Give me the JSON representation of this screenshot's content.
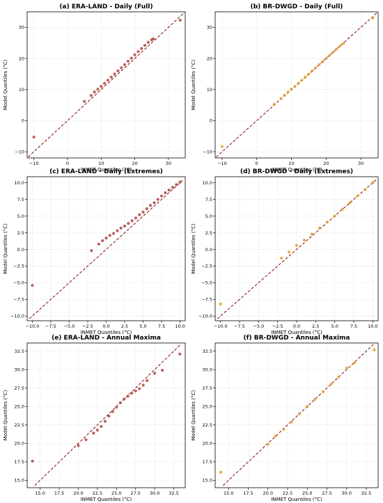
{
  "figure": {
    "background": "#ffffff"
  },
  "colors": {
    "era_land": "#b5504a",
    "br_dwgd": "#e3a23a",
    "reference_line": "#8b1a1a",
    "grid": "#d9d9d9"
  },
  "chart_data": [
    {
      "type": "scatter",
      "title": "(a) ERA-LAND - Daily (Full)",
      "xlabel": "INMET Quantiles (°C)",
      "ylabel": "Model Quantiles (°C)",
      "xlim": [
        -12,
        35
      ],
      "ylim": [
        -12,
        35
      ],
      "xticks": [
        -10,
        0,
        10,
        20,
        30
      ],
      "yticks": [
        -10,
        0,
        10,
        20,
        30
      ],
      "xtick_labels": [
        "−10",
        "0",
        "10",
        "20",
        "30"
      ],
      "ytick_labels": [
        "−10",
        "0",
        "10",
        "20",
        "30"
      ],
      "grid": true,
      "reference_line": "1:1 dashed",
      "color": "#b5504a",
      "points": [
        [
          -10,
          -5.3
        ],
        [
          5,
          6.2
        ],
        [
          7,
          8.1
        ],
        [
          8,
          9.2
        ],
        [
          9,
          10.1
        ],
        [
          10,
          11
        ],
        [
          11,
          12
        ],
        [
          12,
          13
        ],
        [
          13,
          14
        ],
        [
          14,
          15
        ],
        [
          15,
          16
        ],
        [
          16,
          17
        ],
        [
          17,
          18
        ],
        [
          18,
          19.1
        ],
        [
          19,
          20.1
        ],
        [
          20,
          21.2
        ],
        [
          21,
          22.2
        ],
        [
          22,
          23.2
        ],
        [
          23,
          24.2
        ],
        [
          24,
          25.2
        ],
        [
          25,
          26
        ],
        [
          25.5,
          26.3
        ],
        [
          33.5,
          32.3
        ]
      ]
    },
    {
      "type": "scatter",
      "title": "(b) BR-DWGD - Daily (Full)",
      "xlabel": "INMET Quantiles (°C)",
      "ylabel": "Model Quantiles (°C)",
      "xlim": [
        -12,
        35
      ],
      "ylim": [
        -12,
        35
      ],
      "xticks": [
        -10,
        0,
        10,
        20,
        30
      ],
      "yticks": [
        -10,
        0,
        10,
        20,
        30
      ],
      "xtick_labels": [
        "−10",
        "0",
        "10",
        "20",
        "30"
      ],
      "ytick_labels": [
        "−10",
        "0",
        "10",
        "20",
        "30"
      ],
      "grid": true,
      "reference_line": "1:1 dashed",
      "color": "#e3a23a",
      "points": [
        [
          -10,
          -8.3
        ],
        [
          5,
          5.2
        ],
        [
          7,
          7.1
        ],
        [
          8,
          8.2
        ],
        [
          9,
          9.2
        ],
        [
          10,
          10.1
        ],
        [
          11,
          11
        ],
        [
          12,
          12
        ],
        [
          13,
          13
        ],
        [
          14,
          14
        ],
        [
          15,
          15
        ],
        [
          16,
          16
        ],
        [
          17,
          17
        ],
        [
          18,
          18
        ],
        [
          19,
          19
        ],
        [
          20,
          20
        ],
        [
          21,
          21
        ],
        [
          22,
          22
        ],
        [
          23,
          23
        ],
        [
          24,
          24
        ],
        [
          25,
          24.8
        ],
        [
          33.5,
          33
        ]
      ]
    },
    {
      "type": "scatter",
      "title": "(c) ERA-LAND - Daily (Extremes)",
      "xlabel": "INMET Quantiles (°C)",
      "ylabel": "Model Quantiles (°C)",
      "xlim": [
        -10.7,
        10.7
      ],
      "ylim": [
        -10.7,
        10.9
      ],
      "xticks": [
        -10,
        -7.5,
        -5,
        -2.5,
        0,
        2.5,
        5,
        7.5,
        10
      ],
      "yticks": [
        -10,
        -7.5,
        -5,
        -2.5,
        0,
        2.5,
        5,
        7.5,
        10
      ],
      "xtick_labels": [
        "−10.0",
        "−7.5",
        "−5.0",
        "−2.5",
        "0.0",
        "2.5",
        "5.0",
        "7.5",
        "10.0"
      ],
      "ytick_labels": [
        "−10.0",
        "−7.5",
        "−5.0",
        "−2.5",
        "0.0",
        "2.5",
        "5.0",
        "7.5",
        "10.0"
      ],
      "grid": true,
      "reference_line": "1:1 dashed",
      "color": "#b5504a",
      "points": [
        [
          -10,
          -5.4
        ],
        [
          -2,
          -0.2
        ],
        [
          -1,
          0.8
        ],
        [
          -0.5,
          1.3
        ],
        [
          0,
          1.7
        ],
        [
          0.5,
          2.1
        ],
        [
          1,
          2.4
        ],
        [
          1.5,
          2.8
        ],
        [
          2,
          3.2
        ],
        [
          2.5,
          3.5
        ],
        [
          3,
          3.9
        ],
        [
          3.5,
          4.3
        ],
        [
          4,
          4.7
        ],
        [
          4.5,
          5.2
        ],
        [
          5,
          5.6
        ],
        [
          5.5,
          6.1
        ],
        [
          6,
          6.6
        ],
        [
          6.5,
          7
        ],
        [
          7,
          7.5
        ],
        [
          7.5,
          8
        ],
        [
          8,
          8.5
        ],
        [
          8.5,
          8.9
        ],
        [
          9,
          9.3
        ],
        [
          9.5,
          9.7
        ],
        [
          10,
          10.1
        ]
      ]
    },
    {
      "type": "scatter",
      "title": "(d) BR-DWGD - Daily (Extremes)",
      "xlabel": "INMET Quantiles (°C)",
      "ylabel": "Model Quantiles (°C)",
      "xlim": [
        -10.7,
        10.7
      ],
      "ylim": [
        -10.7,
        10.9
      ],
      "xticks": [
        -10,
        -7.5,
        -5,
        -2.5,
        0,
        2.5,
        5,
        7.5,
        10
      ],
      "yticks": [
        -10,
        -7.5,
        -5,
        -2.5,
        0,
        2.5,
        5,
        7.5,
        10
      ],
      "xtick_labels": [
        "−10.0",
        "−7.5",
        "−5.0",
        "−2.5",
        "0.0",
        "2.5",
        "5.0",
        "7.5",
        "10.0"
      ],
      "ytick_labels": [
        "−10.0",
        "−7.5",
        "−5.0",
        "−2.5",
        "0.0",
        "2.5",
        "5.0",
        "7.5",
        "10.0"
      ],
      "grid": true,
      "reference_line": "1:1 dashed",
      "color": "#e3a23a",
      "points": [
        [
          -10,
          -8.2
        ],
        [
          -2,
          -1.3
        ],
        [
          -1,
          -0.4
        ],
        [
          0,
          0.6
        ],
        [
          1,
          1.4
        ],
        [
          2,
          2.3
        ],
        [
          3,
          3.2
        ],
        [
          4,
          4.1
        ],
        [
          5,
          5
        ],
        [
          6,
          6
        ],
        [
          7,
          7
        ],
        [
          8,
          8
        ],
        [
          9,
          9
        ],
        [
          10,
          10
        ]
      ]
    },
    {
      "type": "scatter",
      "title": "(e) ERA-LAND - Annual Maxima",
      "xlabel": "INMET Quantiles (°C)",
      "ylabel": "Model Quantiles (°C)",
      "xlim": [
        13.3,
        34.0
      ],
      "ylim": [
        14.0,
        33.6
      ],
      "xticks": [
        15,
        17.5,
        20,
        22.5,
        25,
        27.5,
        30,
        32.5
      ],
      "yticks": [
        15,
        17.5,
        20,
        22.5,
        25,
        27.5,
        30,
        32.5
      ],
      "xtick_labels": [
        "15.0",
        "17.5",
        "20.0",
        "22.5",
        "25.0",
        "27.5",
        "30.0",
        "32.5"
      ],
      "ytick_labels": [
        "15.0",
        "17.5",
        "20.0",
        "22.5",
        "25.0",
        "27.5",
        "30.0",
        "32.5"
      ],
      "grid": true,
      "reference_line": "1:1 dashed",
      "color": "#b5504a",
      "points": [
        [
          14,
          17.6
        ],
        [
          20,
          19.7
        ],
        [
          21,
          20.5
        ],
        [
          22,
          21.4
        ],
        [
          22.5,
          21.8
        ],
        [
          23,
          22.3
        ],
        [
          23.5,
          23
        ],
        [
          24,
          23.7
        ],
        [
          24.5,
          24.3
        ],
        [
          25,
          24.9
        ],
        [
          25.5,
          25.5
        ],
        [
          26,
          26
        ],
        [
          26.5,
          26.4
        ],
        [
          27,
          26.8
        ],
        [
          27.5,
          27.1
        ],
        [
          28,
          27.4
        ],
        [
          28.5,
          27.9
        ],
        [
          29,
          28.5
        ],
        [
          30,
          29.5
        ],
        [
          31,
          29.9
        ],
        [
          33.3,
          32.1
        ]
      ]
    },
    {
      "type": "scatter",
      "title": "(f) BR-DWGD - Annual Maxima",
      "xlabel": "INMET Quantiles (°C)",
      "ylabel": "Model Quantiles (°C)",
      "xlim": [
        13.3,
        34.0
      ],
      "ylim": [
        14.0,
        33.6
      ],
      "xticks": [
        15,
        17.5,
        20,
        22.5,
        25,
        27.5,
        30,
        32.5
      ],
      "yticks": [
        15,
        17.5,
        20,
        22.5,
        25,
        27.5,
        30,
        32.5
      ],
      "xtick_labels": [
        "15.0",
        "17.5",
        "20.0",
        "22.5",
        "25.0",
        "27.5",
        "30.0",
        "32.5"
      ],
      "ytick_labels": [
        "15.0",
        "17.5",
        "20.0",
        "22.5",
        "25.0",
        "27.5",
        "30.0",
        "32.5"
      ],
      "grid": true,
      "reference_line": "1:1 dashed",
      "color": "#e3a23a",
      "points": [
        [
          14,
          16.1
        ],
        [
          20,
          19.9
        ],
        [
          21,
          21
        ],
        [
          22,
          21.9
        ],
        [
          23,
          22.9
        ],
        [
          24,
          24
        ],
        [
          25,
          25
        ],
        [
          26,
          26
        ],
        [
          27,
          27
        ],
        [
          28,
          28
        ],
        [
          29,
          29
        ],
        [
          30,
          30.2
        ],
        [
          31,
          30.9
        ],
        [
          33.5,
          32.7
        ]
      ]
    }
  ]
}
